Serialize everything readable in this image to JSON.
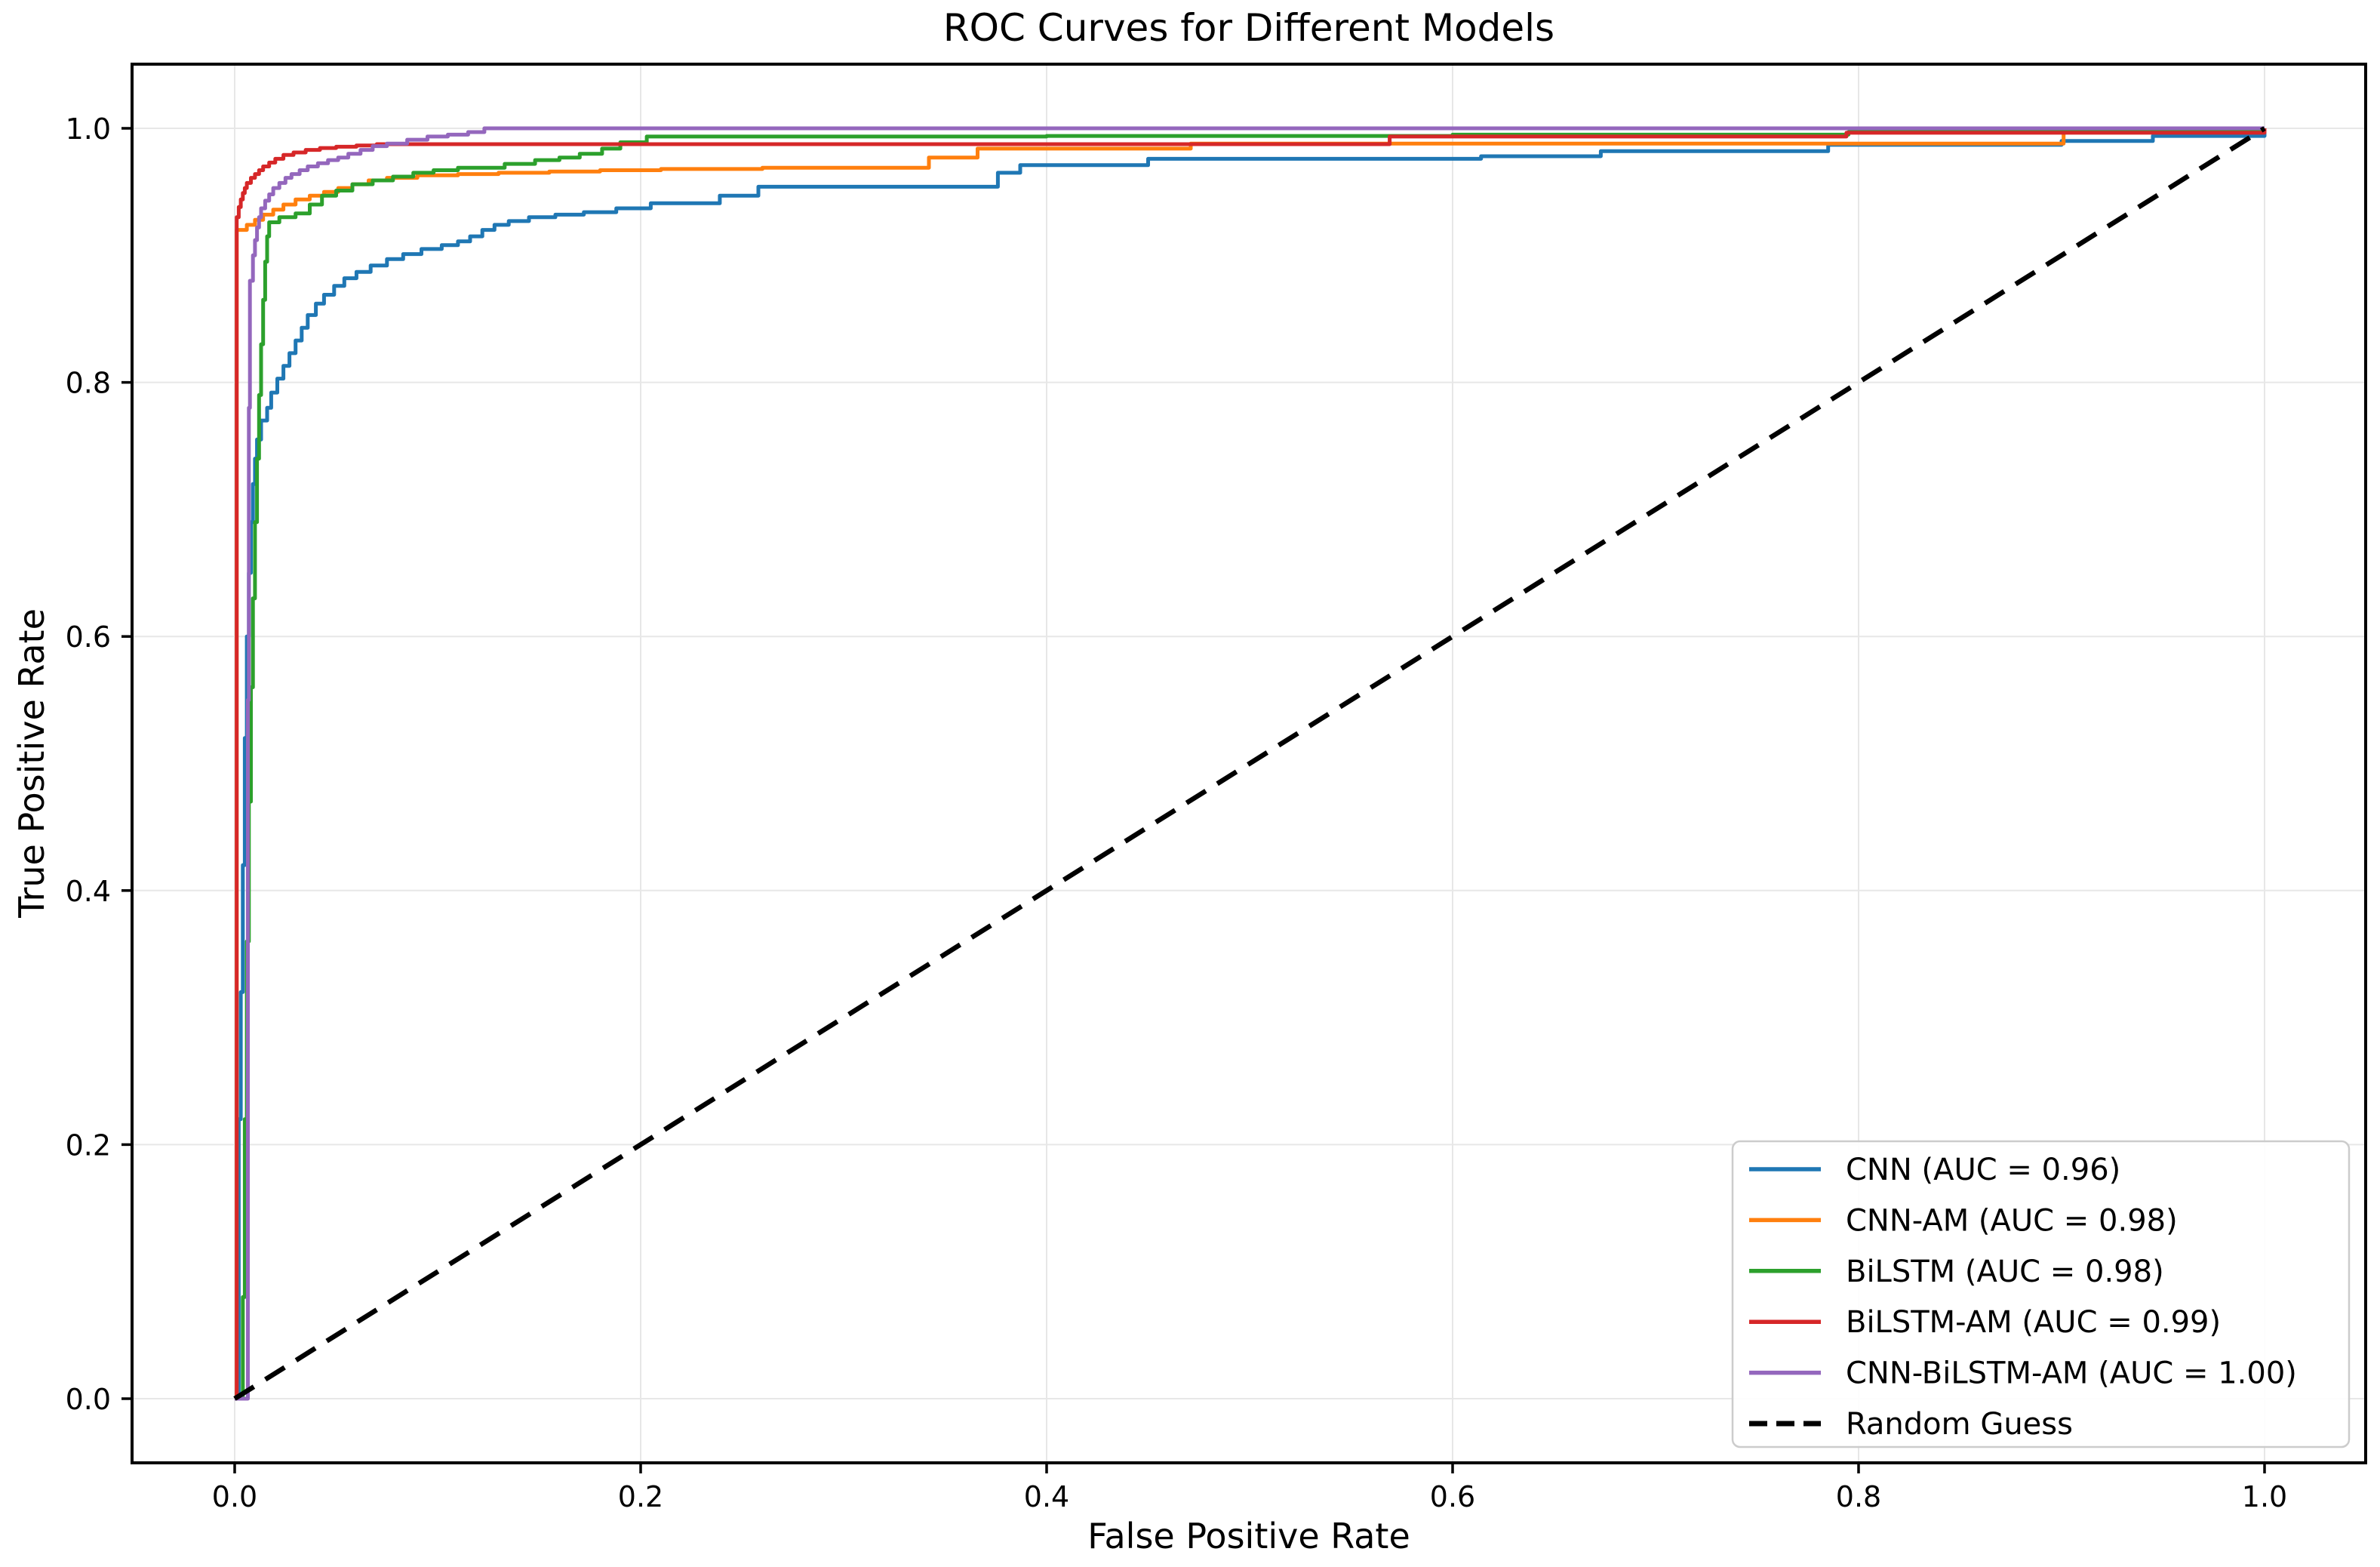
{
  "chart_data": {
    "type": "line",
    "title": "ROC Curves for Different Models",
    "xlabel": "False Positive Rate",
    "ylabel": "True Positive Rate",
    "xlim": [
      -0.05,
      1.05
    ],
    "ylim": [
      -0.05,
      1.05
    ],
    "xticks": [
      0.0,
      0.2,
      0.4,
      0.6,
      0.8,
      1.0
    ],
    "yticks": [
      0.0,
      0.2,
      0.4,
      0.6,
      0.8,
      1.0
    ],
    "grid": true,
    "grid_color": "#e7e7e7",
    "legend_position": "lower right",
    "series": [
      {
        "name": "CNN (AUC = 0.96)",
        "color": "#1f77b4",
        "step": true,
        "dash": null,
        "points": [
          [
            0,
            0
          ],
          [
            0.002,
            0.22
          ],
          [
            0.003,
            0.32
          ],
          [
            0.004,
            0.42
          ],
          [
            0.005,
            0.52
          ],
          [
            0.006,
            0.6
          ],
          [
            0.007,
            0.65
          ],
          [
            0.008,
            0.69
          ],
          [
            0.009,
            0.72
          ],
          [
            0.01,
            0.74
          ],
          [
            0.011,
            0.755
          ],
          [
            0.013,
            0.77
          ],
          [
            0.016,
            0.78
          ],
          [
            0.018,
            0.792
          ],
          [
            0.021,
            0.803
          ],
          [
            0.024,
            0.813
          ],
          [
            0.027,
            0.823
          ],
          [
            0.03,
            0.833
          ],
          [
            0.033,
            0.843
          ],
          [
            0.036,
            0.853
          ],
          [
            0.04,
            0.862
          ],
          [
            0.044,
            0.869
          ],
          [
            0.049,
            0.876
          ],
          [
            0.054,
            0.882
          ],
          [
            0.06,
            0.887
          ],
          [
            0.067,
            0.892
          ],
          [
            0.075,
            0.897
          ],
          [
            0.083,
            0.901
          ],
          [
            0.092,
            0.905
          ],
          [
            0.102,
            0.908
          ],
          [
            0.11,
            0.911
          ],
          [
            0.116,
            0.915
          ],
          [
            0.122,
            0.92
          ],
          [
            0.128,
            0.924
          ],
          [
            0.135,
            0.927
          ],
          [
            0.145,
            0.93
          ],
          [
            0.158,
            0.932
          ],
          [
            0.172,
            0.934
          ],
          [
            0.188,
            0.937
          ],
          [
            0.205,
            0.941
          ],
          [
            0.239,
            0.947
          ],
          [
            0.258,
            0.954
          ],
          [
            0.376,
            0.965
          ],
          [
            0.387,
            0.971
          ],
          [
            0.45,
            0.976
          ],
          [
            0.614,
            0.978
          ],
          [
            0.673,
            0.982
          ],
          [
            0.785,
            0.987
          ],
          [
            0.9,
            0.99
          ],
          [
            0.945,
            0.994
          ],
          [
            1.0,
            1.0
          ]
        ]
      },
      {
        "name": "CNN-AM (AUC = 0.98)",
        "color": "#ff7f0e",
        "step": true,
        "dash": null,
        "points": [
          [
            0,
            0
          ],
          [
            0.001,
            0.92
          ],
          [
            0.006,
            0.924
          ],
          [
            0.01,
            0.928
          ],
          [
            0.014,
            0.932
          ],
          [
            0.019,
            0.936
          ],
          [
            0.024,
            0.94
          ],
          [
            0.03,
            0.944
          ],
          [
            0.037,
            0.947
          ],
          [
            0.044,
            0.95
          ],
          [
            0.051,
            0.953
          ],
          [
            0.058,
            0.956
          ],
          [
            0.066,
            0.959
          ],
          [
            0.075,
            0.961
          ],
          [
            0.09,
            0.963
          ],
          [
            0.11,
            0.964
          ],
          [
            0.13,
            0.965
          ],
          [
            0.155,
            0.966
          ],
          [
            0.18,
            0.967
          ],
          [
            0.21,
            0.968
          ],
          [
            0.26,
            0.969
          ],
          [
            0.342,
            0.977
          ],
          [
            0.366,
            0.984
          ],
          [
            0.471,
            0.988
          ],
          [
            0.901,
            0.9975
          ],
          [
            1.0,
            1.0
          ]
        ]
      },
      {
        "name": "BiLSTM (AUC = 0.98)",
        "color": "#2ca02c",
        "step": true,
        "dash": null,
        "points": [
          [
            0,
            0
          ],
          [
            0.004,
            0.08
          ],
          [
            0.005,
            0.22
          ],
          [
            0.006,
            0.36
          ],
          [
            0.007,
            0.47
          ],
          [
            0.008,
            0.56
          ],
          [
            0.009,
            0.63
          ],
          [
            0.01,
            0.69
          ],
          [
            0.011,
            0.74
          ],
          [
            0.012,
            0.79
          ],
          [
            0.013,
            0.83
          ],
          [
            0.014,
            0.865
          ],
          [
            0.015,
            0.895
          ],
          [
            0.016,
            0.915
          ],
          [
            0.017,
            0.926
          ],
          [
            0.022,
            0.93
          ],
          [
            0.03,
            0.933
          ],
          [
            0.037,
            0.94
          ],
          [
            0.043,
            0.947
          ],
          [
            0.05,
            0.951
          ],
          [
            0.058,
            0.956
          ],
          [
            0.068,
            0.959
          ],
          [
            0.078,
            0.962
          ],
          [
            0.088,
            0.965
          ],
          [
            0.098,
            0.967
          ],
          [
            0.11,
            0.969
          ],
          [
            0.133,
            0.972
          ],
          [
            0.148,
            0.975
          ],
          [
            0.16,
            0.977
          ],
          [
            0.17,
            0.98
          ],
          [
            0.181,
            0.984
          ],
          [
            0.19,
            0.989
          ],
          [
            0.203,
            0.9935
          ],
          [
            0.4,
            0.994
          ],
          [
            0.6,
            0.995
          ],
          [
            0.795,
            0.997
          ],
          [
            0.9,
            0.9985
          ],
          [
            1.0,
            1.0
          ]
        ]
      },
      {
        "name": "BiLSTM-AM (AUC = 0.99)",
        "color": "#d62728",
        "step": true,
        "dash": null,
        "points": [
          [
            0,
            0
          ],
          [
            0.001,
            0.93
          ],
          [
            0.002,
            0.938
          ],
          [
            0.003,
            0.944
          ],
          [
            0.004,
            0.949
          ],
          [
            0.005,
            0.953
          ],
          [
            0.006,
            0.957
          ],
          [
            0.008,
            0.961
          ],
          [
            0.01,
            0.964
          ],
          [
            0.012,
            0.967
          ],
          [
            0.014,
            0.97
          ],
          [
            0.017,
            0.973
          ],
          [
            0.02,
            0.976
          ],
          [
            0.024,
            0.979
          ],
          [
            0.029,
            0.981
          ],
          [
            0.035,
            0.983
          ],
          [
            0.042,
            0.9845
          ],
          [
            0.05,
            0.9855
          ],
          [
            0.06,
            0.9865
          ],
          [
            0.07,
            0.9875
          ],
          [
            0.569,
            0.9935
          ],
          [
            0.794,
            0.9965
          ],
          [
            1.0,
            1.0
          ]
        ]
      },
      {
        "name": "CNN-BiLSTM-AM (AUC = 1.00)",
        "color": "#9467bd",
        "step": true,
        "dash": null,
        "points": [
          [
            0,
            0
          ],
          [
            0.0065,
            0.55
          ],
          [
            0.007,
            0.78
          ],
          [
            0.0075,
            0.88
          ],
          [
            0.009,
            0.9
          ],
          [
            0.01,
            0.912
          ],
          [
            0.011,
            0.922
          ],
          [
            0.012,
            0.93
          ],
          [
            0.013,
            0.937
          ],
          [
            0.015,
            0.943
          ],
          [
            0.017,
            0.948
          ],
          [
            0.019,
            0.953
          ],
          [
            0.022,
            0.957
          ],
          [
            0.025,
            0.961
          ],
          [
            0.028,
            0.964
          ],
          [
            0.032,
            0.967
          ],
          [
            0.036,
            0.97
          ],
          [
            0.041,
            0.9725
          ],
          [
            0.046,
            0.975
          ],
          [
            0.051,
            0.977
          ],
          [
            0.056,
            0.98
          ],
          [
            0.062,
            0.983
          ],
          [
            0.068,
            0.986
          ],
          [
            0.075,
            0.988
          ],
          [
            0.085,
            0.991
          ],
          [
            0.095,
            0.9935
          ],
          [
            0.105,
            0.995
          ],
          [
            0.115,
            0.997
          ],
          [
            0.123,
            1.0
          ],
          [
            1.0,
            1.0
          ]
        ]
      },
      {
        "name": "Random Guess",
        "color": "#000000",
        "step": false,
        "dash": "30 18",
        "points": [
          [
            0,
            0
          ],
          [
            1,
            1
          ]
        ]
      }
    ]
  }
}
